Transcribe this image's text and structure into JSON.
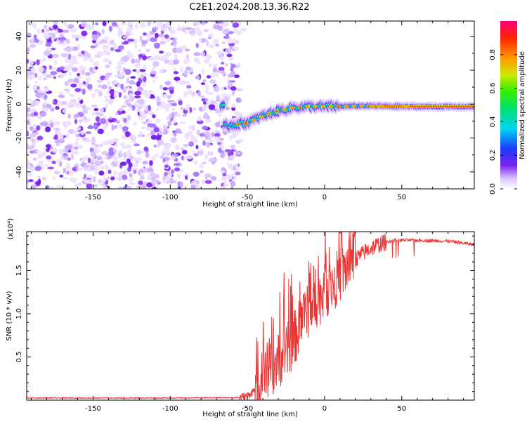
{
  "title": "C2E1.2024.208.13.36.R22",
  "chart_data": [
    {
      "type": "heatmap",
      "xlabel": "Height of straight line (km)",
      "ylabel": "Frequency (Hz)",
      "xlim": [
        -193,
        97
      ],
      "ylim": [
        -50,
        49
      ],
      "xticks": [
        -150,
        -100,
        -50,
        0,
        50
      ],
      "xtick_labels": [
        "-150",
        "-100",
        "-50",
        "0",
        "50"
      ],
      "yticks": [
        -40,
        -20,
        0,
        20,
        40
      ],
      "ytick_labels": [
        "-40",
        "-20",
        "0",
        "20",
        "40"
      ],
      "noise_region_x": [
        -193,
        -55
      ],
      "ridge": {
        "description_points": [
          {
            "x": -65,
            "y": -13
          },
          {
            "x": -50,
            "y": -11
          },
          {
            "x": -40,
            "y": -7
          },
          {
            "x": -30,
            "y": -4
          },
          {
            "x": -20,
            "y": -2
          },
          {
            "x": -10,
            "y": -1.5
          },
          {
            "x": 0,
            "y": -1.5
          },
          {
            "x": 25,
            "y": -1
          },
          {
            "x": 60,
            "y": -1.5
          },
          {
            "x": 97,
            "y": -1.5
          }
        ]
      },
      "colorbar": {
        "label": "Normalized spectral amplitude",
        "range": [
          0,
          1
        ],
        "ticks": [
          0.0,
          0.2,
          0.4,
          0.6,
          0.8
        ],
        "tick_labels": [
          "0.0",
          "0.2",
          "0.4",
          "0.6",
          "0.8"
        ]
      },
      "grid": false
    },
    {
      "type": "line",
      "xlabel": "Height of straight line (km)",
      "ylabel": "SNR (10 * v/v)",
      "y_multiplier": "(x10⁴)",
      "xlim": [
        -193,
        97
      ],
      "ylim": [
        0,
        19500
      ],
      "xticks": [
        -150,
        -100,
        -50,
        0,
        50
      ],
      "xtick_labels": [
        "-150",
        "-100",
        "-50",
        "0",
        "50"
      ],
      "yticks": [
        5000,
        10000,
        15000
      ],
      "ytick_labels": [
        "0.5",
        "1.0",
        "1.5"
      ],
      "series": [
        {
          "color": "#ee3333",
          "points": [
            {
              "x": -193,
              "y": 250
            },
            {
              "x": -100,
              "y": 250
            },
            {
              "x": -55,
              "y": 300
            },
            {
              "x": -50,
              "y": 500
            },
            {
              "x": -45,
              "y": 1200
            },
            {
              "x": -40,
              "y": 2500
            },
            {
              "x": -35,
              "y": 3500
            },
            {
              "x": -30,
              "y": 4500
            },
            {
              "x": -25,
              "y": 5500
            },
            {
              "x": -20,
              "y": 7000
            },
            {
              "x": -15,
              "y": 9000
            },
            {
              "x": -10,
              "y": 10500
            },
            {
              "x": -5,
              "y": 11500
            },
            {
              "x": 0,
              "y": 12500
            },
            {
              "x": 5,
              "y": 13500
            },
            {
              "x": 10,
              "y": 14500
            },
            {
              "x": 15,
              "y": 15500
            },
            {
              "x": 20,
              "y": 16300
            },
            {
              "x": 25,
              "y": 17000
            },
            {
              "x": 30,
              "y": 17600
            },
            {
              "x": 35,
              "y": 18000
            },
            {
              "x": 40,
              "y": 18300
            },
            {
              "x": 45,
              "y": 18500
            },
            {
              "x": 60,
              "y": 18500
            },
            {
              "x": 80,
              "y": 18400
            },
            {
              "x": 97,
              "y": 18000
            }
          ]
        }
      ],
      "grid": false
    }
  ]
}
